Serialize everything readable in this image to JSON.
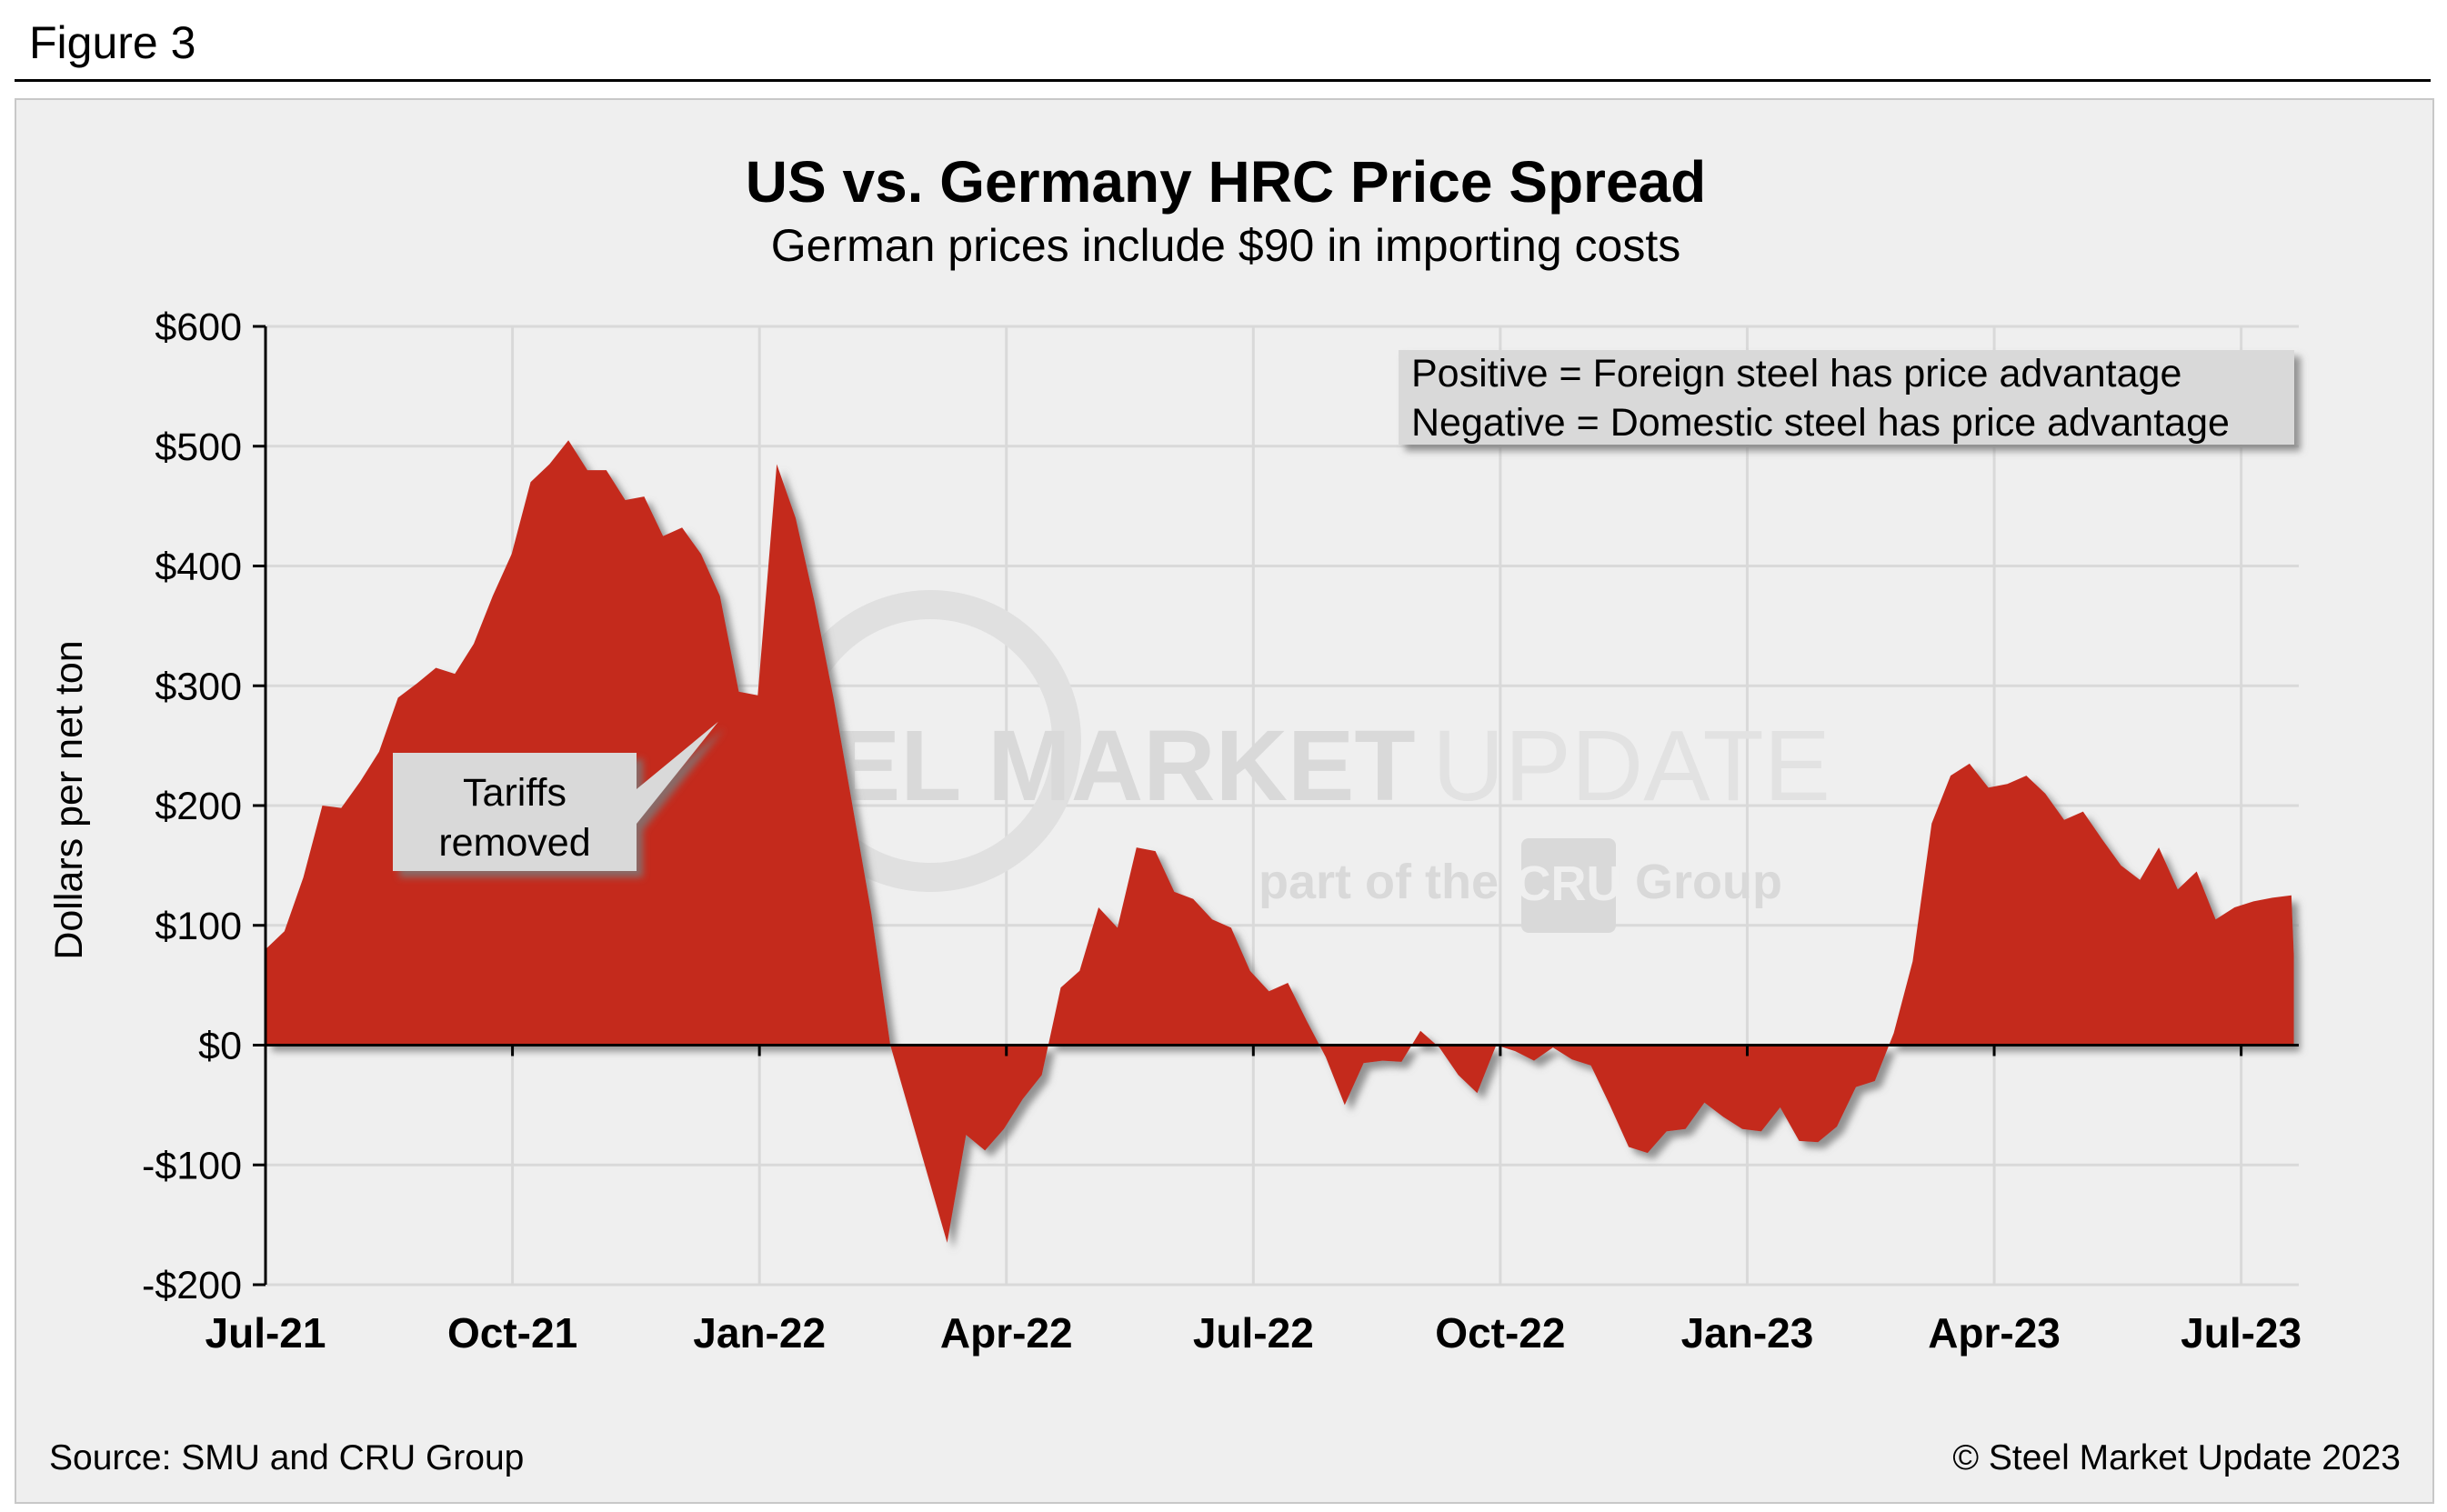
{
  "figure_label": "Figure 3",
  "source": "Source: SMU and CRU Group",
  "copyright": "© Steel Market Update 2023",
  "watermark": {
    "line1_bold": "STEEL MARKET",
    "line1_light": "UPDATE",
    "line2_left": "part of the",
    "line2_logo": "CRU",
    "line2_right": "Group"
  },
  "colors": {
    "fill": "#c42a1f",
    "shadow": "#7a7a7a",
    "panel": "#efefef",
    "grid": "#d9d9d9",
    "note_box": "#d9d9d9"
  },
  "chart_data": {
    "type": "area",
    "title": "US vs. Germany HRC Price Spread",
    "subtitle": "German prices include $90 in importing costs",
    "ylabel": "Dollars per net ton",
    "xlabel": "",
    "ylim": [
      -200,
      600
    ],
    "xlim": [
      0,
      24.7
    ],
    "grid": true,
    "y_ticks": [
      -200,
      -100,
      0,
      100,
      200,
      300,
      400,
      500,
      600
    ],
    "y_tick_labels": [
      "-$200",
      "-$100",
      "$0",
      "$100",
      "$200",
      "$300",
      "$400",
      "$500",
      "$600"
    ],
    "x_ticks": [
      0,
      3,
      6,
      9,
      12,
      15,
      18,
      21,
      24
    ],
    "x_tick_labels": [
      "Jul-21",
      "Oct-21",
      "Jan-22",
      "Apr-22",
      "Jul-22",
      "Oct-22",
      "Jan-23",
      "Apr-23",
      "Jul-23"
    ],
    "x_unit": "months since Jul-21",
    "legend_note": {
      "position": "top-right",
      "lines": [
        "Positive = Foreign steel has price advantage",
        "Negative = Domestic steel has price advantage"
      ]
    },
    "annotation": {
      "text_lines": [
        "Tariffs",
        "removed"
      ],
      "points_to": {
        "x": 5.5,
        "y": 270
      }
    },
    "series": [
      {
        "x": [
          0,
          0.23,
          0.46,
          0.69,
          0.92,
          1.15,
          1.38,
          1.61,
          1.84,
          2.07,
          2.3,
          2.53,
          2.76,
          2.99,
          3.22,
          3.45,
          3.68,
          3.91,
          4.14,
          4.37,
          4.6,
          4.83,
          5.06,
          5.29,
          5.52,
          5.75,
          5.98,
          6.21,
          6.44,
          6.67,
          6.9,
          7.13,
          7.36,
          7.59,
          7.82,
          8.05,
          8.28,
          8.51,
          8.74,
          8.97,
          9.2,
          9.43,
          9.66,
          9.89,
          10.12,
          10.35,
          10.58,
          10.81,
          11.04,
          11.27,
          11.5,
          11.73,
          11.96,
          12.19,
          12.42,
          12.65,
          12.88,
          13.11,
          13.34,
          13.57,
          13.8,
          14.03,
          14.26,
          14.49,
          14.72,
          14.95,
          15.18,
          15.41,
          15.64,
          15.87,
          16.1,
          16.33,
          16.56,
          16.79,
          17.02,
          17.25,
          17.48,
          17.71,
          17.94,
          18.17,
          18.4,
          18.63,
          18.86,
          19.09,
          19.32,
          19.55,
          19.78,
          20.01,
          20.24,
          20.47,
          20.7,
          20.93,
          21.16,
          21.39,
          21.62,
          21.85,
          22.08,
          22.31,
          22.54,
          22.77,
          23.0,
          23.23,
          23.46,
          23.69,
          23.92,
          24.15,
          24.38,
          24.61,
          24.64
        ],
        "values": [
          80,
          95,
          140,
          200,
          198,
          220,
          245,
          290,
          302,
          315,
          310,
          335,
          375,
          410,
          470,
          485,
          505,
          480,
          480,
          455,
          458,
          425,
          432,
          410,
          375,
          295,
          292,
          485,
          440,
          370,
          290,
          200,
          110,
          0,
          -55,
          -110,
          -165,
          -75,
          -88,
          -70,
          -45,
          -25,
          48,
          62,
          115,
          98,
          165,
          162,
          128,
          122,
          105,
          98,
          62,
          45,
          52,
          20,
          -10,
          -50,
          -15,
          -13,
          -14,
          12,
          -2,
          -25,
          -40,
          0,
          -5,
          -13,
          -2,
          -12,
          -17,
          -50,
          -85,
          -90,
          -72,
          -70,
          -48,
          -60,
          -70,
          -72,
          -52,
          -80,
          -81,
          -68,
          -35,
          -30,
          10,
          70,
          185,
          225,
          235,
          215,
          218,
          225,
          210,
          188,
          195,
          172,
          150,
          138,
          165,
          130,
          145,
          105,
          115,
          120,
          123,
          125,
          75
        ]
      }
    ]
  }
}
